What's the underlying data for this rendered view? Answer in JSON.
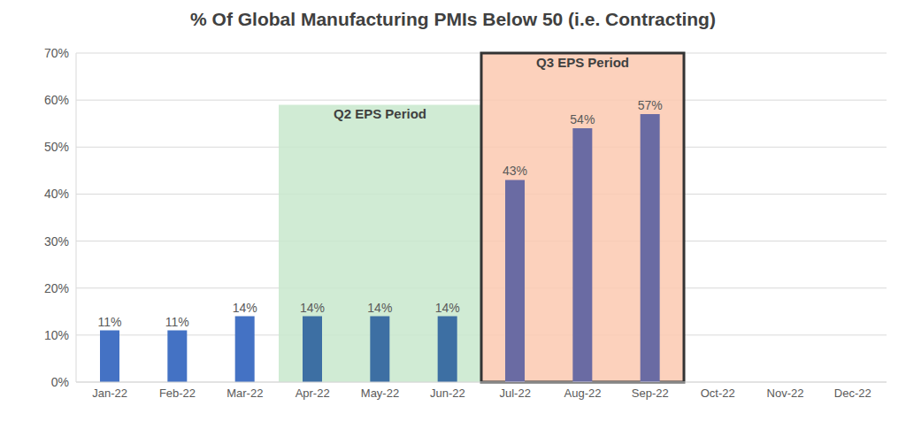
{
  "chart_data": {
    "type": "bar",
    "title": "% Of Global Manufacturing PMIs Below 50 (i.e. Contracting)",
    "categories": [
      "Jan-22",
      "Feb-22",
      "Mar-22",
      "Apr-22",
      "May-22",
      "Jun-22",
      "Jul-22",
      "Aug-22",
      "Sep-22",
      "Oct-22",
      "Nov-22",
      "Dec-22"
    ],
    "values": [
      11,
      11,
      14,
      14,
      14,
      14,
      43,
      54,
      57,
      null,
      null,
      null
    ],
    "value_labels": [
      "11%",
      "11%",
      "14%",
      "14%",
      "14%",
      "14%",
      "43%",
      "54%",
      "57%",
      null,
      null,
      null
    ],
    "colors": [
      "#4472c4",
      "#4472c4",
      "#4472c4",
      "#3d6fa3",
      "#3d6fa3",
      "#3d6fa3",
      "#6a6ba3",
      "#6a6ba3",
      "#6a6ba3",
      "#6a6ba3",
      "#6a6ba3",
      "#6a6ba3"
    ],
    "ylim": [
      0,
      70
    ],
    "yticks": [
      {
        "value": 0,
        "label": "0%"
      },
      {
        "value": 10,
        "label": "10%"
      },
      {
        "value": 20,
        "label": "20%"
      },
      {
        "value": 30,
        "label": "30%"
      },
      {
        "value": 40,
        "label": "40%"
      },
      {
        "value": 50,
        "label": "50%"
      },
      {
        "value": 60,
        "label": "60%"
      },
      {
        "value": 70,
        "label": "70%"
      }
    ],
    "grid": true,
    "data_labels": true,
    "annotations": [
      {
        "label": "Q2 EPS Period",
        "from": "Apr-22",
        "to": "Jun-22",
        "y": [
          0,
          59
        ],
        "color": "#c8e8cc"
      },
      {
        "label": "Q3 EPS Period",
        "from": "Jul-22",
        "to": "Sep-22",
        "y": [
          0,
          70
        ],
        "color": "#fbc9b0"
      }
    ]
  }
}
